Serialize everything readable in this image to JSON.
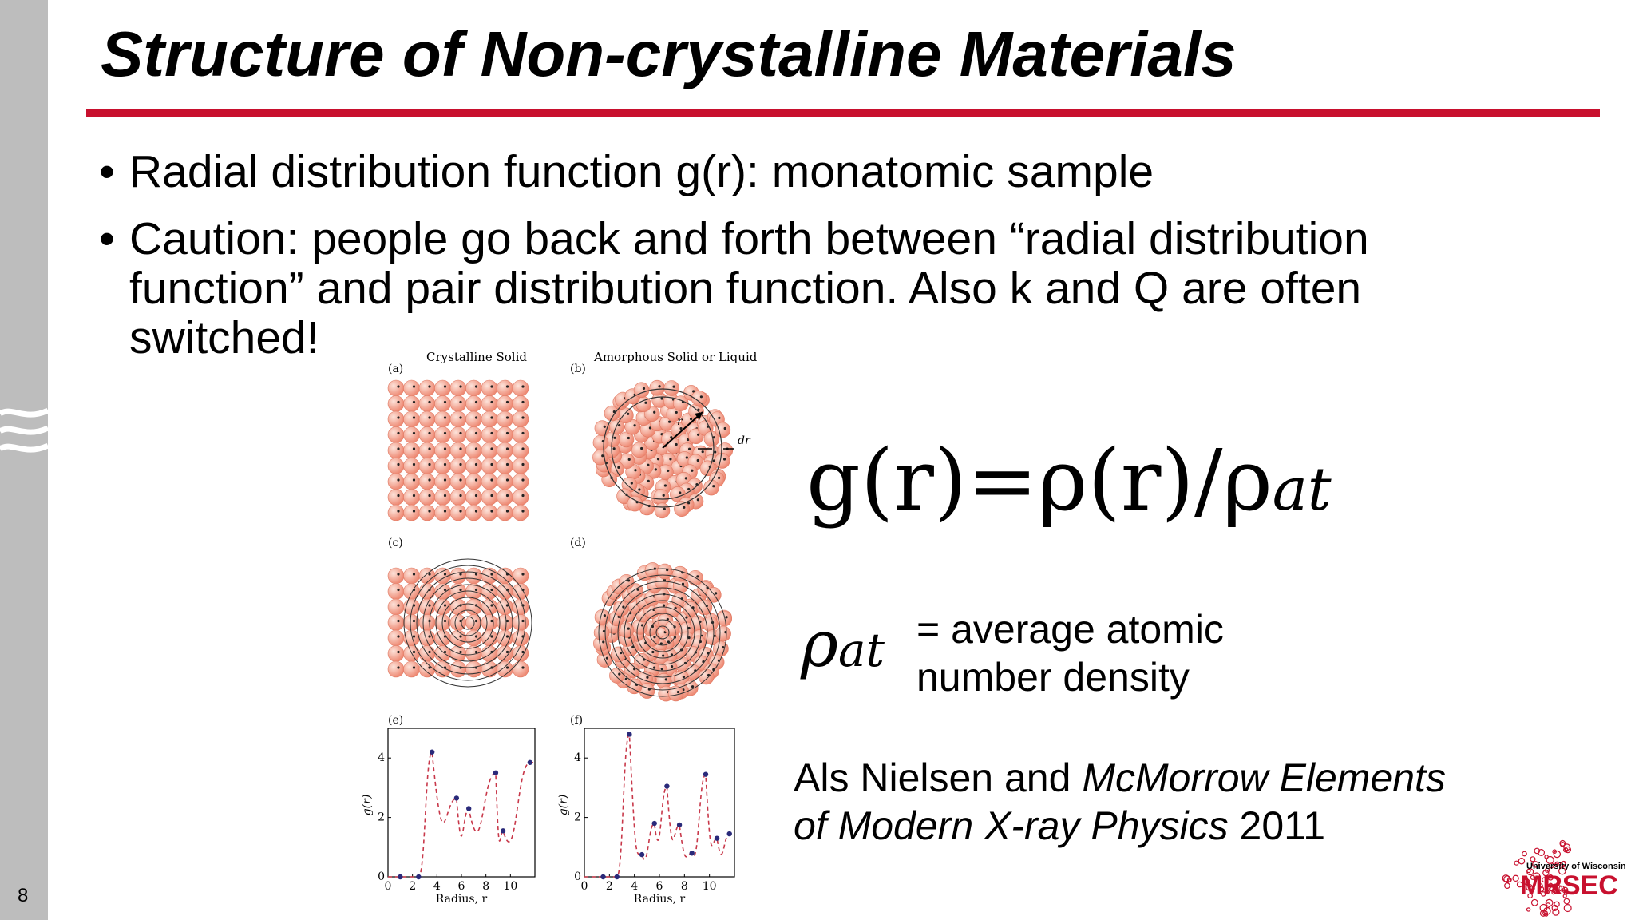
{
  "slide": {
    "title": "Structure of Non-crystalline Materials",
    "number": "8",
    "bullets": [
      "Radial distribution function g(r): monatomic sample",
      "Caution: people go back and forth between “radial distribution function” and pair distribution function. Also k and Q are often switched!"
    ]
  },
  "figure": {
    "panel_a_label": "(a)",
    "panel_b_label": "(b)",
    "panel_c_label": "(c)",
    "panel_d_label": "(d)",
    "panel_e_label": "(e)",
    "panel_f_label": "(f)",
    "panel_a_title": "Crystalline Solid",
    "panel_b_title": "Amorphous Solid or Liquid",
    "r_label": "r",
    "dr_label": "dr",
    "e_ylabel": "g(r)",
    "f_ylabel": "g(r)",
    "e_xlabel": "Radius, r",
    "f_xlabel": "Radius, r",
    "x_ticks": [
      "0",
      "2",
      "4",
      "6",
      "8",
      "10"
    ],
    "y_ticks": [
      "0",
      "2",
      "4"
    ]
  },
  "chart_data": [
    {
      "type": "line",
      "panel": "(e)",
      "xlabel": "Radius, r",
      "ylabel": "g(r)",
      "xlim": [
        0,
        12
      ],
      "ylim": [
        0,
        5
      ],
      "points": [
        [
          1.0,
          0
        ],
        [
          2.5,
          0
        ],
        [
          3.6,
          4.2
        ],
        [
          5.6,
          2.65
        ],
        [
          6.6,
          2.3
        ],
        [
          8.8,
          3.5
        ],
        [
          9.4,
          1.55
        ],
        [
          11.6,
          3.85
        ]
      ]
    },
    {
      "type": "line",
      "panel": "(f)",
      "xlabel": "Radius, r",
      "ylabel": "g(r)",
      "xlim": [
        0,
        12
      ],
      "ylim": [
        0,
        5
      ],
      "points": [
        [
          1.5,
          0
        ],
        [
          2.6,
          0
        ],
        [
          3.6,
          4.8
        ],
        [
          4.6,
          0.75
        ],
        [
          5.6,
          1.8
        ],
        [
          6.6,
          3.05
        ],
        [
          7.6,
          1.75
        ],
        [
          8.6,
          0.8
        ],
        [
          9.7,
          3.45
        ],
        [
          10.6,
          1.3
        ],
        [
          11.6,
          1.45
        ]
      ]
    }
  ],
  "formula": {
    "main": "g(r)=ρ(r)/ρ",
    "main_sub": "at",
    "rho": "ρ",
    "rho_sub": "at"
  },
  "definition": {
    "line1": "= average atomic",
    "line2": "number density"
  },
  "citation": {
    "authors": "Als Nielsen and ",
    "title_part1": "McMorrow Elements",
    "title_part2": "of Modern X-ray Physics",
    "year": " 2011"
  },
  "logo": {
    "top_text": "University of Wisconsin",
    "main_text": "MRSEC"
  },
  "colors": {
    "accent_red": "#c8102e",
    "sidebar_gray": "#bdbdbd",
    "atom_fill": "#f3a08d",
    "curve_red": "#c8384a",
    "point_blue": "#2a2a7a"
  }
}
